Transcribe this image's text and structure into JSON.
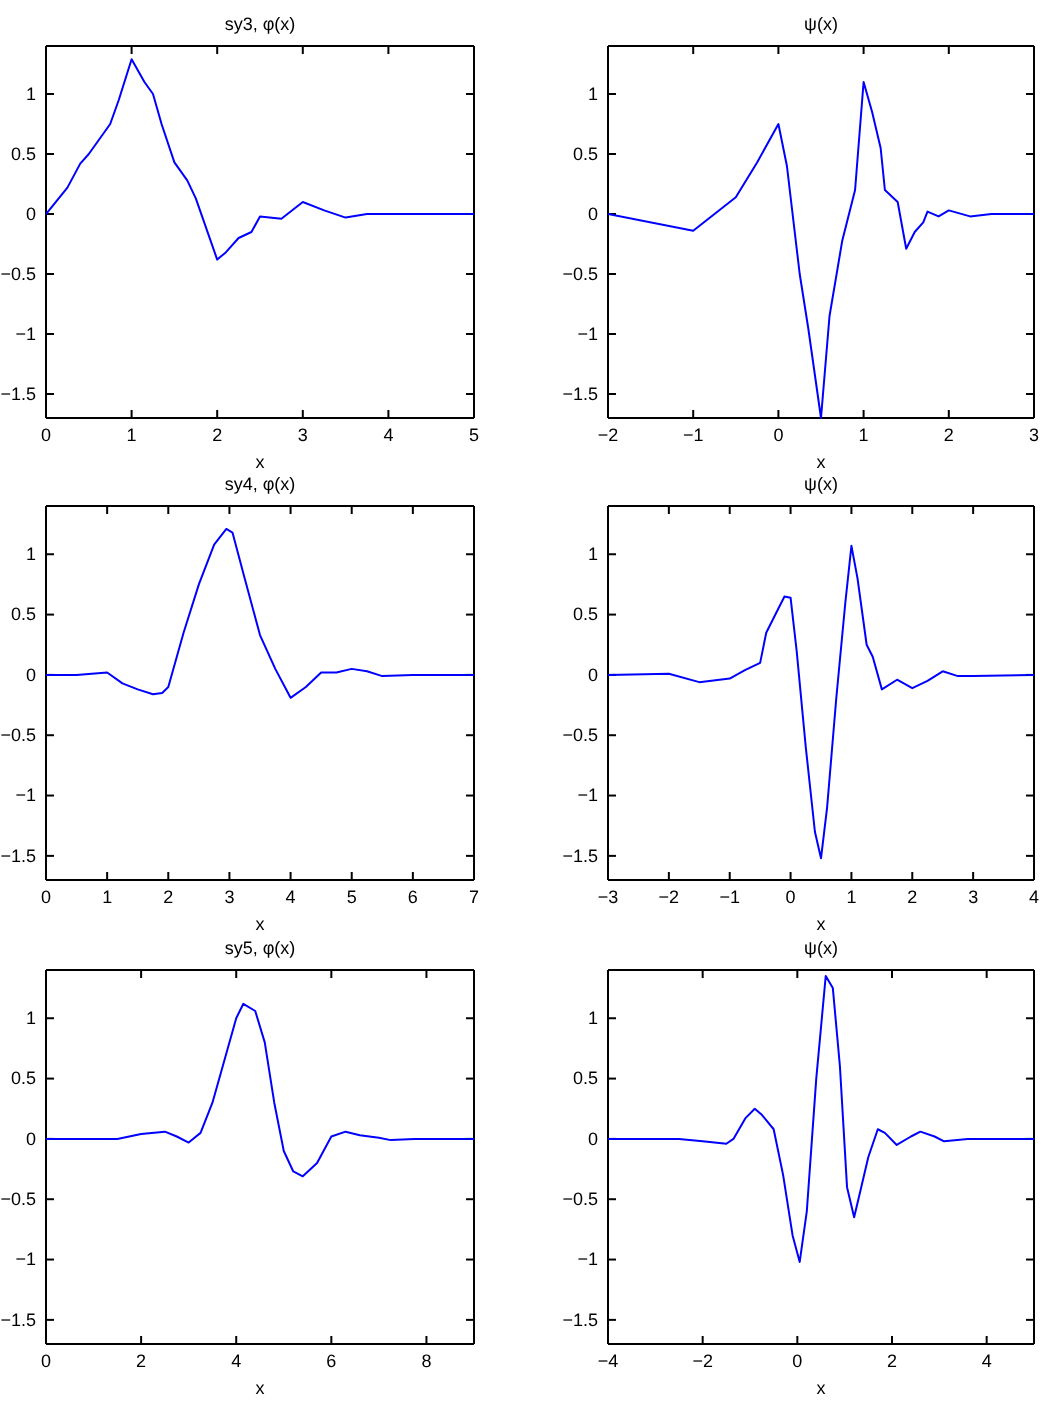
{
  "chart_data": [
    {
      "type": "line",
      "title": "sy3, φ(x)",
      "xlabel": "x",
      "color": "#0000ff",
      "xlim": [
        0,
        5
      ],
      "ylim": [
        -1.7,
        1.4
      ],
      "xticks": [
        0,
        1,
        2,
        3,
        4,
        5
      ],
      "yticks": [
        -1.5,
        -1,
        -0.5,
        0,
        0.5,
        1
      ],
      "x": [
        0,
        0.25,
        0.4,
        0.5,
        0.75,
        0.85,
        1,
        1.15,
        1.25,
        1.35,
        1.5,
        1.65,
        1.75,
        2,
        2.1,
        2.25,
        2.4,
        2.5,
        2.75,
        3,
        3.25,
        3.5,
        3.75,
        5
      ],
      "values": [
        0,
        0.22,
        0.42,
        0.5,
        0.75,
        0.95,
        1.29,
        1.1,
        1.0,
        0.75,
        0.43,
        0.28,
        0.13,
        -0.38,
        -0.32,
        -0.2,
        -0.15,
        -0.02,
        -0.04,
        0.1,
        0.03,
        -0.03,
        0,
        0
      ]
    },
    {
      "type": "line",
      "title": "ψ(x)",
      "xlabel": "x",
      "color": "#0000ff",
      "xlim": [
        -2,
        3
      ],
      "ylim": [
        -1.7,
        1.4
      ],
      "xticks": [
        -2,
        -1,
        0,
        1,
        2,
        3
      ],
      "yticks": [
        -1.5,
        -1,
        -0.5,
        0,
        0.5,
        1
      ],
      "x": [
        -2,
        -1,
        -0.5,
        -0.25,
        0,
        0.1,
        0.25,
        0.35,
        0.5,
        0.6,
        0.75,
        0.9,
        1,
        1.1,
        1.2,
        1.25,
        1.4,
        1.5,
        1.6,
        1.7,
        1.75,
        1.88,
        2,
        2.25,
        2.5,
        3
      ],
      "values": [
        0,
        -0.14,
        0.14,
        0.43,
        0.75,
        0.4,
        -0.5,
        -0.95,
        -1.7,
        -0.85,
        -0.22,
        0.2,
        1.1,
        0.85,
        0.55,
        0.2,
        0.1,
        -0.29,
        -0.15,
        -0.07,
        0.02,
        -0.02,
        0.03,
        -0.02,
        0,
        0
      ]
    },
    {
      "type": "line",
      "title": "sy4, φ(x)",
      "xlabel": "x",
      "color": "#0000ff",
      "xlim": [
        0,
        7
      ],
      "ylim": [
        -1.7,
        1.4
      ],
      "xticks": [
        0,
        1,
        2,
        3,
        4,
        5,
        6,
        7
      ],
      "yticks": [
        -1.5,
        -1,
        -0.5,
        0,
        0.5,
        1
      ],
      "x": [
        0,
        0.5,
        1,
        1.25,
        1.5,
        1.75,
        1.9,
        2,
        2.25,
        2.5,
        2.75,
        2.95,
        3.05,
        3.25,
        3.5,
        3.75,
        4,
        4.25,
        4.5,
        4.75,
        5,
        5.25,
        5.5,
        6,
        7
      ],
      "values": [
        0,
        0,
        0.02,
        -0.07,
        -0.12,
        -0.16,
        -0.15,
        -0.1,
        0.35,
        0.75,
        1.08,
        1.21,
        1.18,
        0.8,
        0.33,
        0.05,
        -0.19,
        -0.1,
        0.02,
        0.02,
        0.05,
        0.03,
        -0.01,
        0,
        0
      ]
    },
    {
      "type": "line",
      "title": "ψ(x)",
      "xlabel": "x",
      "color": "#0000ff",
      "xlim": [
        -3,
        4
      ],
      "ylim": [
        -1.7,
        1.4
      ],
      "xticks": [
        -3,
        -2,
        -1,
        0,
        1,
        2,
        3,
        4
      ],
      "yticks": [
        -1.5,
        -1,
        -0.5,
        0,
        0.5,
        1
      ],
      "x": [
        -3,
        -2,
        -1.5,
        -1,
        -0.75,
        -0.5,
        -0.4,
        -0.2,
        -0.1,
        0,
        0.1,
        0.25,
        0.4,
        0.5,
        0.6,
        0.75,
        0.9,
        1,
        1.1,
        1.25,
        1.35,
        1.5,
        1.75,
        2,
        2.25,
        2.5,
        2.75,
        3,
        4
      ],
      "values": [
        0,
        0.01,
        -0.06,
        -0.03,
        0.04,
        0.1,
        0.35,
        0.55,
        0.65,
        0.64,
        0.2,
        -0.6,
        -1.3,
        -1.52,
        -1.1,
        -0.2,
        0.6,
        1.07,
        0.8,
        0.25,
        0.15,
        -0.12,
        -0.04,
        -0.11,
        -0.05,
        0.03,
        -0.01,
        -0.01,
        0
      ]
    },
    {
      "type": "line",
      "title": "sy5, φ(x)",
      "xlabel": "x",
      "color": "#0000ff",
      "xlim": [
        0,
        9
      ],
      "ylim": [
        -1.7,
        1.4
      ],
      "xticks": [
        0,
        2,
        4,
        6,
        8
      ],
      "yticks": [
        -1.5,
        -1,
        -0.5,
        0,
        0.5,
        1
      ],
      "x": [
        0,
        1.5,
        2,
        2.5,
        2.75,
        3,
        3.25,
        3.5,
        3.75,
        4,
        4.15,
        4.4,
        4.6,
        4.8,
        5,
        5.2,
        5.4,
        5.7,
        6,
        6.3,
        6.6,
        7,
        7.25,
        7.75,
        9
      ],
      "values": [
        0,
        0,
        0.04,
        0.06,
        0.02,
        -0.03,
        0.05,
        0.3,
        0.65,
        1.0,
        1.12,
        1.06,
        0.8,
        0.3,
        -0.1,
        -0.27,
        -0.31,
        -0.2,
        0.02,
        0.06,
        0.03,
        0.01,
        -0.01,
        0,
        0
      ]
    },
    {
      "type": "line",
      "title": "ψ(x)",
      "xlabel": "x",
      "color": "#0000ff",
      "xlim": [
        -4,
        5
      ],
      "ylim": [
        -1.7,
        1.4
      ],
      "xticks": [
        -4,
        -2,
        0,
        2,
        4
      ],
      "yticks": [
        -1.5,
        -1,
        -0.5,
        0,
        0.5,
        1
      ],
      "x": [
        -4,
        -2.5,
        -2,
        -1.5,
        -1.35,
        -1.1,
        -0.9,
        -0.75,
        -0.5,
        -0.3,
        -0.1,
        0.05,
        0.2,
        0.4,
        0.6,
        0.75,
        0.9,
        1.05,
        1.2,
        1.35,
        1.5,
        1.7,
        1.85,
        2.1,
        2.4,
        2.6,
        2.9,
        3.1,
        3.6,
        5
      ],
      "values": [
        0,
        0,
        -0.02,
        -0.04,
        0,
        0.17,
        0.25,
        0.2,
        0.08,
        -0.3,
        -0.8,
        -1.02,
        -0.6,
        0.5,
        1.35,
        1.25,
        0.6,
        -0.4,
        -0.65,
        -0.4,
        -0.15,
        0.08,
        0.05,
        -0.05,
        0.02,
        0.06,
        0.02,
        -0.02,
        0,
        0
      ]
    }
  ]
}
